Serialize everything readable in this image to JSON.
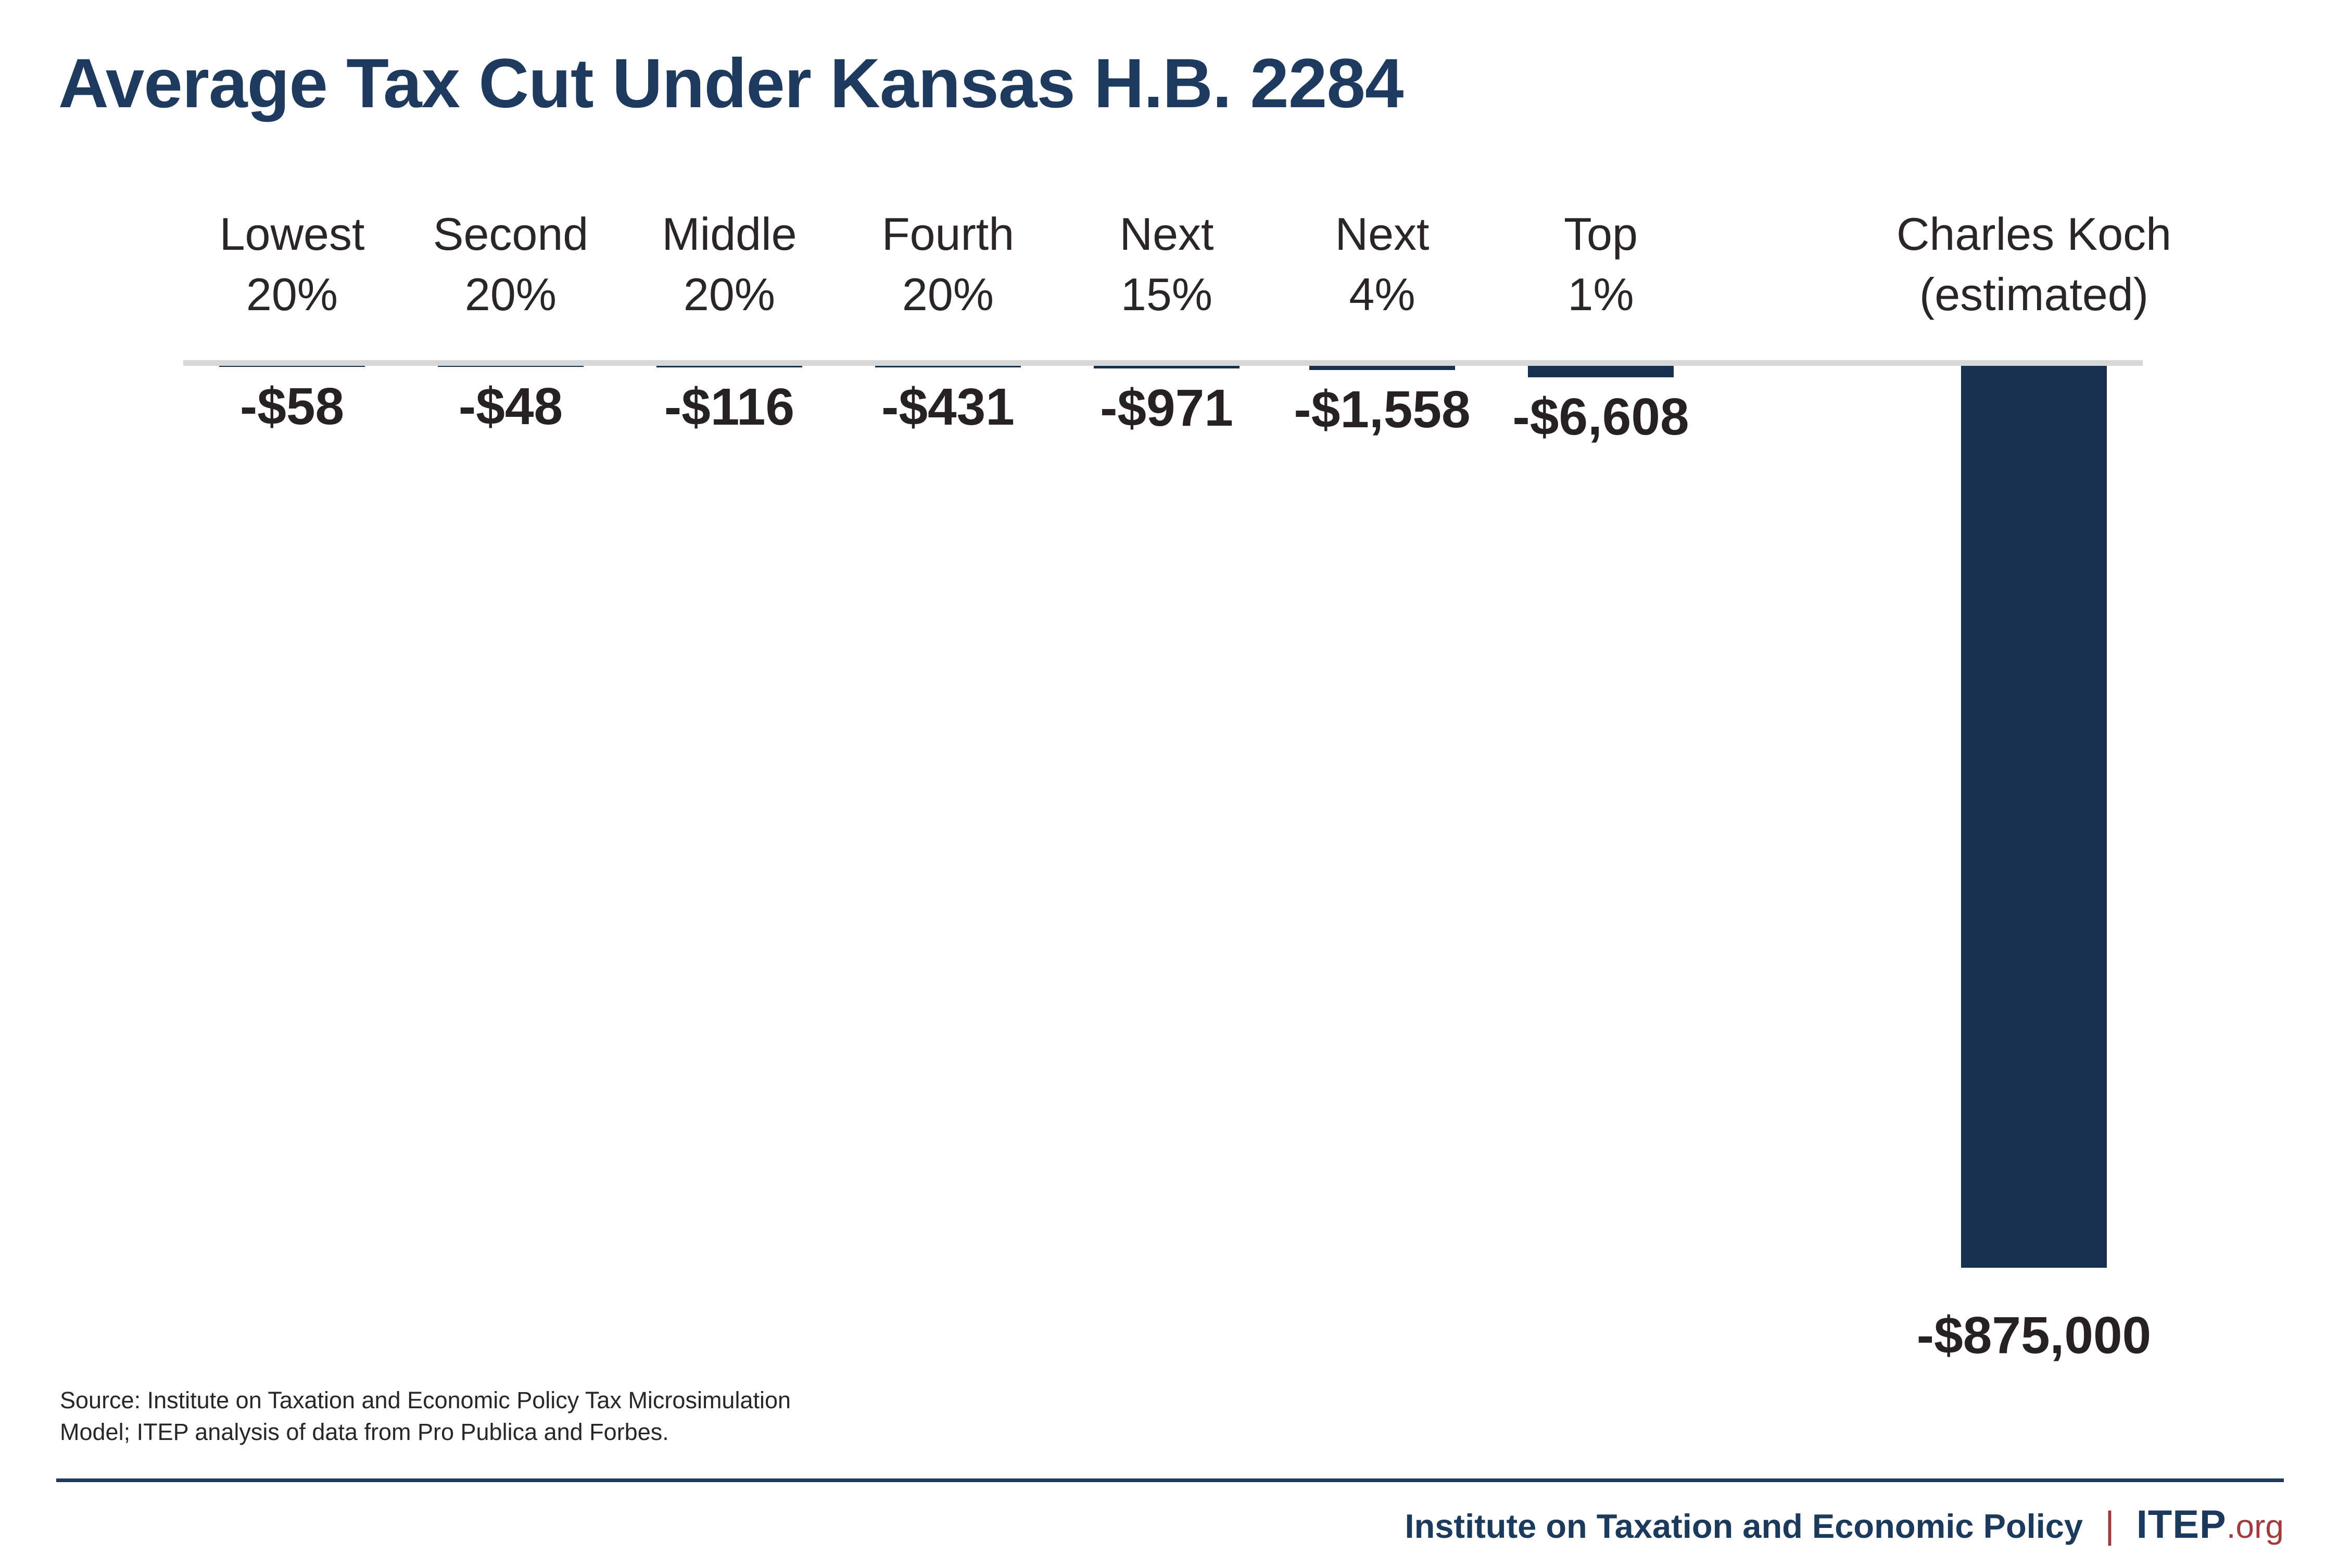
{
  "page": {
    "title": "Average Tax Cut Under Kansas H.B. 2284"
  },
  "chart_data": {
    "type": "bar",
    "title": "Average Tax Cut Under Kansas H.B. 2284",
    "categories": [
      "Lowest 20%",
      "Second 20%",
      "Middle 20%",
      "Fourth 20%",
      "Next 15%",
      "Next 4%",
      "Top 1%",
      "Charles Koch (estimated)"
    ],
    "values": [
      -58,
      -48,
      -116,
      -431,
      -971,
      -1558,
      -6608,
      -875000
    ],
    "value_labels": [
      "-$58",
      "-$48",
      "-$116",
      "-$431",
      "-$971",
      "-$1,558",
      "-$6,608",
      "-$875,000"
    ],
    "ylim": [
      -875000,
      0
    ],
    "grid": false,
    "legend": false,
    "orientation": "vertical-negative-from-zero-baseline",
    "bar_color": "#16304e",
    "columns": [
      {
        "slug": "lowest-20",
        "line1": "Lowest",
        "line2": "20%",
        "label": "-$58"
      },
      {
        "slug": "second-20",
        "line1": "Second",
        "line2": "20%",
        "label": "-$48"
      },
      {
        "slug": "middle-20",
        "line1": "Middle",
        "line2": "20%",
        "label": "-$116"
      },
      {
        "slug": "fourth-20",
        "line1": "Fourth",
        "line2": "20%",
        "label": "-$431"
      },
      {
        "slug": "next-15",
        "line1": "Next",
        "line2": "15%",
        "label": "-$971"
      },
      {
        "slug": "next-4",
        "line1": "Next",
        "line2": "4%",
        "label": "-$1,558"
      },
      {
        "slug": "top-1",
        "line1": "Top",
        "line2": "1%",
        "label": "-$6,608"
      },
      {
        "slug": "charles-koch",
        "line1": "Charles Koch",
        "line2": "(estimated)",
        "label": "-$875,000"
      }
    ]
  },
  "source": {
    "line1": "Source: Institute on Taxation and Economic Policy Tax Microsimulation",
    "line2": "Model; ITEP analysis of data from Pro Publica and Forbes."
  },
  "footer": {
    "org_name": "Institute on Taxation and Economic Policy",
    "separator": "|",
    "brand": "ITEP",
    "brand_suffix": ".org"
  },
  "colors": {
    "title_navy": "#1e3a5e",
    "bar_navy": "#16304e",
    "footer_navy": "#1c3a5c",
    "accent_red": "#a03b3e",
    "baseline_gray": "#d8d8d8",
    "text_dark": "#2a2627"
  }
}
